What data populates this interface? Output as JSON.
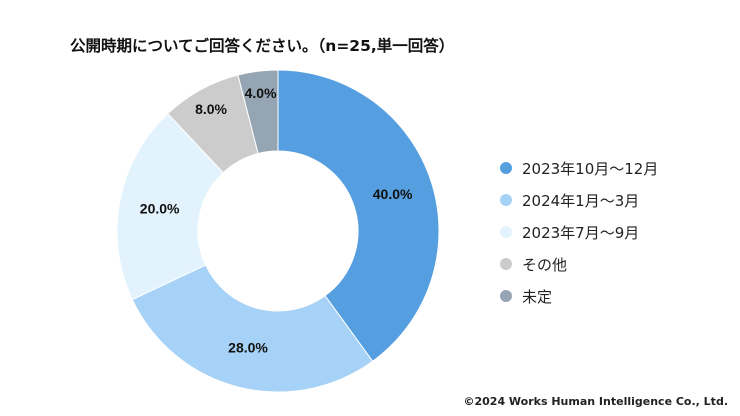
{
  "chart_data": {
    "type": "pie",
    "donut": true,
    "title": "公開時期についてご回答ください。（n=25,単一回答）",
    "categories": [
      "2023年10月～12月",
      "2024年1月～3月",
      "2023年7月～9月",
      "その他",
      "未定"
    ],
    "values": [
      40.0,
      28.0,
      20.0,
      8.0,
      4.0
    ],
    "labels": [
      "40.0%",
      "28.0%",
      "20.0%",
      "8.0%",
      "4.0%"
    ],
    "colors": [
      "#559fe0",
      "#a6d2f7",
      "#e2f3fd",
      "#cccccc",
      "#95a5b3"
    ],
    "legend_position": "right"
  },
  "footer": "©2024 Works Human Intelligence Co., Ltd."
}
